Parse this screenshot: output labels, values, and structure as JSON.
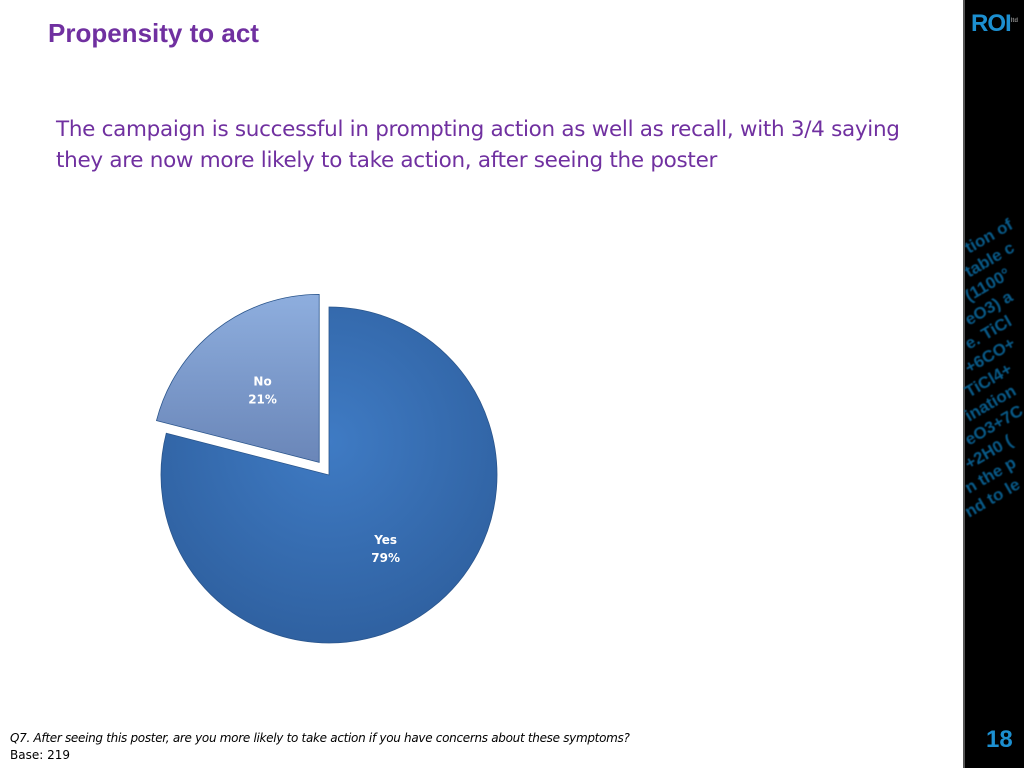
{
  "header": {
    "title": "Propensity to act"
  },
  "subtitle": "The campaign is successful in prompting action as well as recall, with 3/4 saying they are now more likely to take action, after seeing the poster",
  "sidebar": {
    "logo": "ROI",
    "logo_mark": "ltd",
    "decorative_text": [
      "tion of",
      "table c",
      "(1100°",
      "eO3) a",
      "e. TiCl",
      "+6CO+",
      "TiCl4+",
      "ination",
      "eO3+7C",
      "+2H0 (",
      "n the p",
      "nd to le"
    ],
    "page_number": "18"
  },
  "footnote": {
    "question": "Q7. After seeing this poster, are you more likely to take action if you have concerns about these symptoms?",
    "base": "Base: 219"
  },
  "chart_data": {
    "type": "pie",
    "title": "",
    "slices": [
      {
        "label": "Yes",
        "value": 79,
        "display": "79%",
        "color": "#3a70b5",
        "exploded": false
      },
      {
        "label": "No",
        "value": 21,
        "display": "21%",
        "color": "#7f9fd0",
        "exploded": true
      }
    ],
    "start_angle": "12 o'clock, clockwise",
    "legend": "none"
  }
}
